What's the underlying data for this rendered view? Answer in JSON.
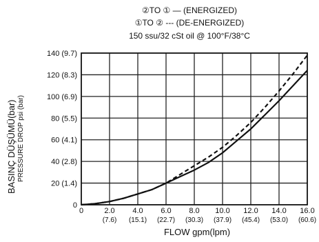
{
  "chart_data": {
    "type": "line",
    "title_lines": [
      "②TO ① — (ENERGIZED)",
      "①TO ② --- (DE-ENERGIZED)",
      "150 ssu/32 cSt oil @ 100°F/38°C"
    ],
    "ylabel": "BASINÇ DÜŞÜMÜ(bar)",
    "ylabel2": "PRESSURE DROP psi (bar)",
    "xlabel": "FLOW gpm(lpm)",
    "xlim": [
      0,
      16
    ],
    "ylim": [
      0,
      140
    ],
    "grid": true,
    "x_ticks": [
      {
        "value": 0,
        "line1": "0",
        "line2": ""
      },
      {
        "value": 2,
        "line1": "2.0",
        "line2": "(7.6)"
      },
      {
        "value": 4,
        "line1": "4.0",
        "line2": "(15.1)"
      },
      {
        "value": 6,
        "line1": "6.0",
        "line2": "(22.7)"
      },
      {
        "value": 8,
        "line1": "8.0",
        "line2": "(30.3)"
      },
      {
        "value": 10,
        "line1": "10.0",
        "line2": "(37.9)"
      },
      {
        "value": 12,
        "line1": "12.0",
        "line2": "(45.4)"
      },
      {
        "value": 14,
        "line1": "14.0",
        "line2": "(53.0)"
      },
      {
        "value": 16,
        "line1": "16.0",
        "line2": "(60.6)"
      }
    ],
    "y_ticks": [
      {
        "value": 0,
        "label": "0"
      },
      {
        "value": 20,
        "label": "20 (1.4)"
      },
      {
        "value": 40,
        "label": "40 (2.8)"
      },
      {
        "value": 60,
        "label": "60 (4.1)"
      },
      {
        "value": 80,
        "label": "80 (5.5)"
      },
      {
        "value": 100,
        "label": "100 (6.9)"
      },
      {
        "value": 120,
        "label": "120 (8.3)"
      },
      {
        "value": 140,
        "label": "140 (9.7)"
      }
    ],
    "series": [
      {
        "style": "solid",
        "x": [
          0,
          1,
          2,
          3,
          4,
          5,
          6,
          7,
          8,
          9,
          10,
          11,
          12,
          13,
          14,
          15,
          16
        ],
        "y": [
          0,
          1,
          3,
          6,
          10,
          14,
          20,
          26,
          32,
          39,
          48,
          59,
          70,
          83,
          96,
          110,
          124
        ]
      },
      {
        "style": "dashed",
        "x": [
          0,
          1,
          2,
          3,
          4,
          5,
          6,
          7,
          8,
          9,
          10,
          11,
          12,
          13,
          14,
          15,
          16
        ],
        "y": [
          0,
          1,
          3,
          6,
          10,
          14,
          20,
          28,
          36,
          44,
          53,
          64,
          76,
          90,
          105,
          121,
          138
        ]
      }
    ],
    "colors": {
      "line": "#111111",
      "grid": "#222222",
      "frame": "#111111"
    }
  }
}
